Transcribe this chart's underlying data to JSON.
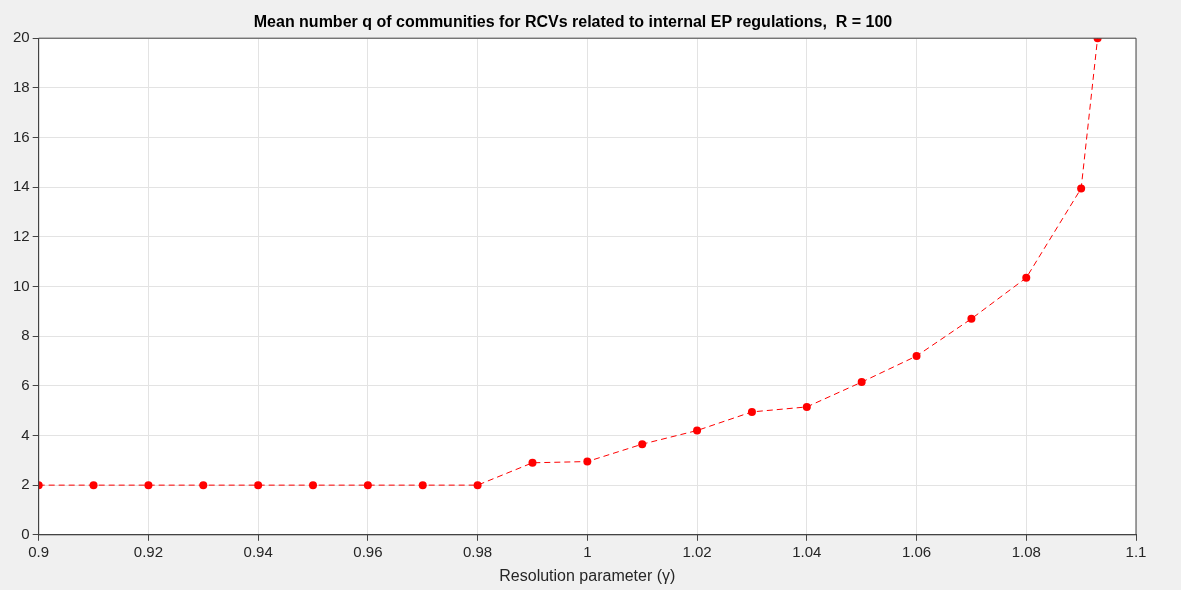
{
  "chart_data": {
    "type": "line",
    "title": "Mean number q of communities for RCVs related to internal EP regulations,  R = 100",
    "xlabel": "Resolution parameter (γ)",
    "x": [
      0.9,
      0.91,
      0.92,
      0.93,
      0.94,
      0.95,
      0.96,
      0.97,
      0.98,
      0.99,
      1.0,
      1.01,
      1.02,
      1.03,
      1.04,
      1.05,
      1.06,
      1.07,
      1.08,
      1.09,
      1.093
    ],
    "series": [
      {
        "color": "#ff0000",
        "values": [
          2,
          2,
          2,
          2,
          2,
          2,
          2,
          2,
          2,
          2.9,
          2.95,
          3.65,
          4.2,
          4.95,
          5.15,
          6.15,
          7.2,
          8.7,
          10.35,
          13.95,
          20
        ]
      }
    ],
    "xlim": [
      0.9,
      1.1
    ],
    "xticks": [
      0.9,
      0.92,
      0.94,
      0.96,
      0.98,
      {
        "value": 1,
        "label": "1"
      },
      1.02,
      1.04,
      1.06,
      1.08,
      {
        "value": 1.1,
        "label": "1.1"
      }
    ],
    "ylim": [
      0,
      20
    ],
    "yticks": [
      0,
      2,
      4,
      6,
      8,
      10,
      12,
      14,
      16,
      18,
      20
    ],
    "grid": true,
    "legend": false,
    "marker": "circle",
    "line_style": "dashed"
  }
}
